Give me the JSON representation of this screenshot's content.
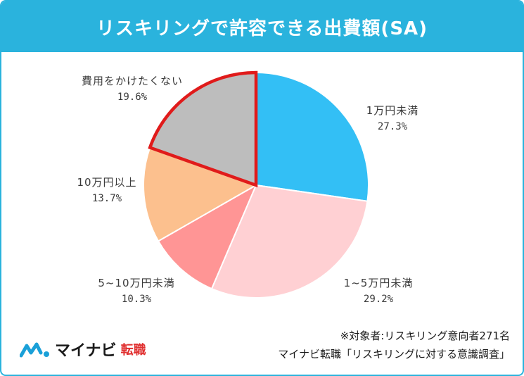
{
  "title": "リスキリングで許容できる出費額(SA)",
  "colors": {
    "title_bg": "#2ab3dd",
    "highlight_border": "#e01b1b"
  },
  "chart_data": {
    "type": "pie",
    "start": "12 o'clock",
    "direction": "clockwise",
    "slices": [
      {
        "label": "1万円未満",
        "value": 27.3,
        "pct_text": "27.3%",
        "color": "#33bff5",
        "highlight": false
      },
      {
        "label": "1~5万円未満",
        "value": 29.2,
        "pct_text": "29.2%",
        "color": "#ffd0d3",
        "highlight": false
      },
      {
        "label": "5~10万円未満",
        "value": 10.3,
        "pct_text": "10.3%",
        "color": "#ff9595",
        "highlight": false
      },
      {
        "label": "10万円以上",
        "value": 13.7,
        "pct_text": "13.7%",
        "color": "#fcc08e",
        "highlight": false
      },
      {
        "label": "費用をかけたくない",
        "value": 19.6,
        "pct_text": "19.6%",
        "color": "#bdbdbd",
        "highlight": true
      }
    ]
  },
  "footer": {
    "logo_text": "マイナビ",
    "logo_sub": "転職",
    "note_line1": "※対象者:リスキリング意向者271名",
    "note_line2": "マイナビ転職「リスキリングに対する意識調査」"
  }
}
